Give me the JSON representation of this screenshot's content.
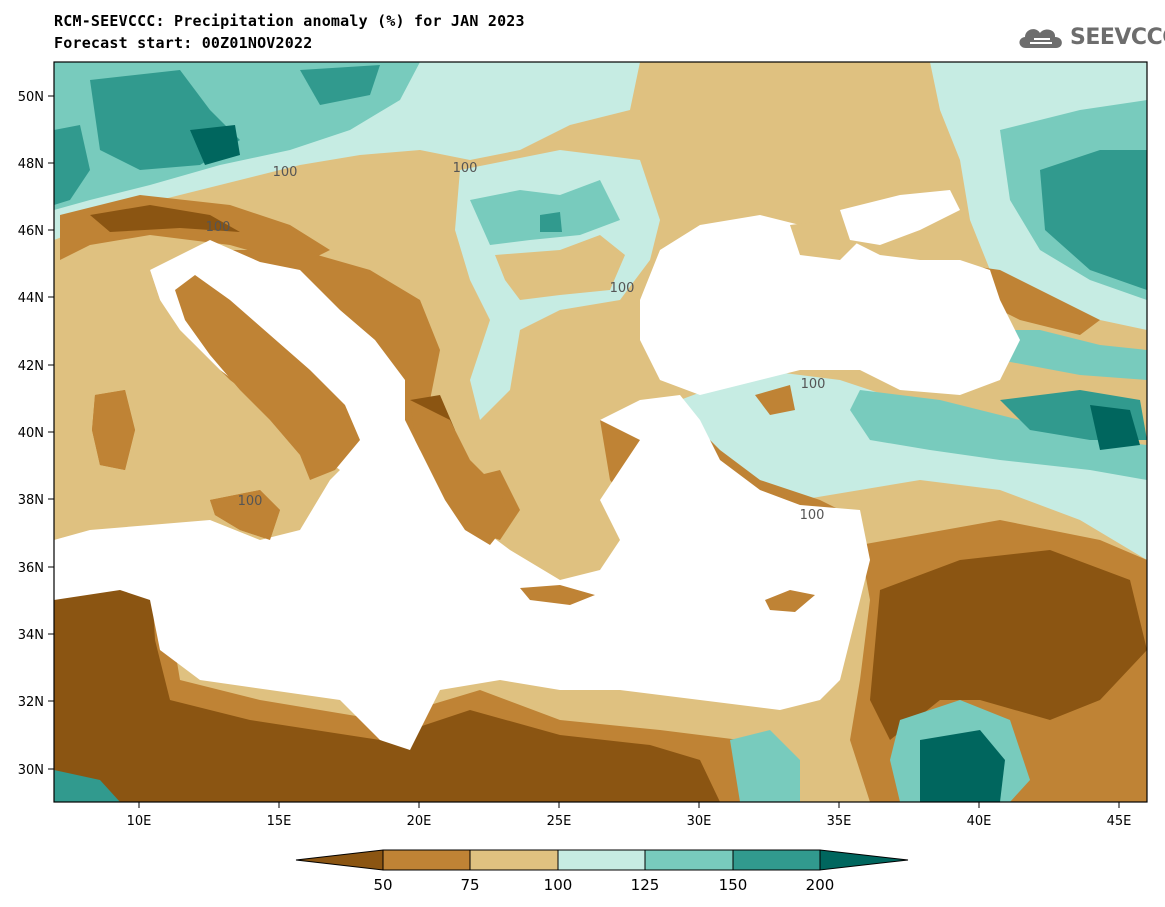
{
  "header": {
    "title_line1": "RCM-SEEVCCC: Precipitation anomaly (%) for JAN 2023",
    "title_line2": "Forecast start: 00Z01NOV2022"
  },
  "logo": {
    "text": "SEEVCCC",
    "icon": "cloud-icon"
  },
  "map": {
    "lon_ticks": [
      "10E",
      "15E",
      "20E",
      "25E",
      "30E",
      "35E",
      "40E",
      "45E"
    ],
    "lat_ticks": [
      "50N",
      "48N",
      "46N",
      "44N",
      "42N",
      "40N",
      "38N",
      "36N",
      "34N",
      "32N",
      "30N"
    ],
    "contour_labels": [
      "100",
      "100",
      "100",
      "100",
      "100",
      "100",
      "100"
    ]
  },
  "legend": {
    "labels": [
      "50",
      "75",
      "100",
      "125",
      "150",
      "200"
    ],
    "colors": [
      "#8b5512",
      "#bf8335",
      "#dfc180",
      "#c6ece3",
      "#78cbbd",
      "#319a8e",
      "#00665e"
    ]
  }
}
